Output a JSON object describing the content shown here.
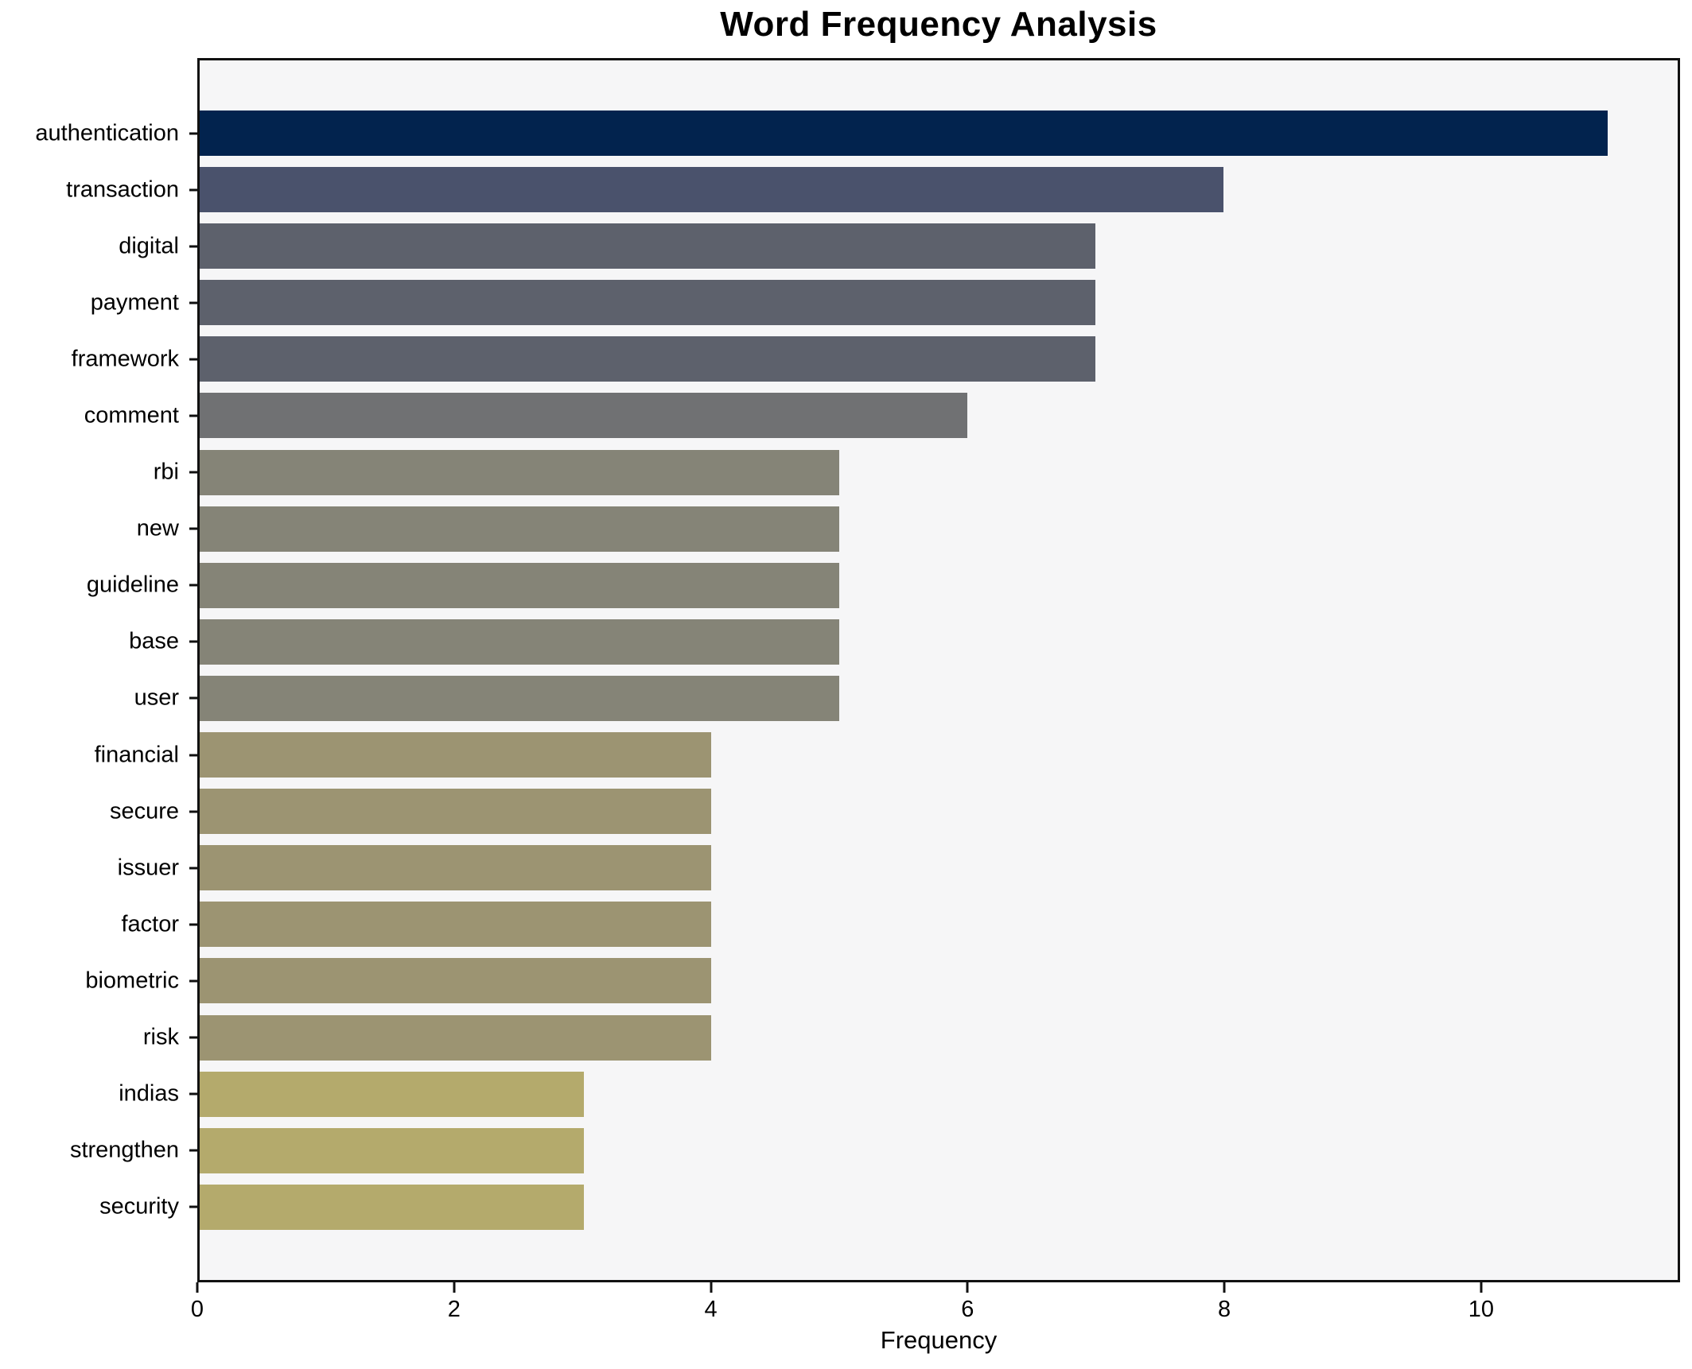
{
  "figure": {
    "background": "#ffffff",
    "plot_background": "#f6f6f7",
    "spine_color": "#111111",
    "text_color": "#000000"
  },
  "chart_data": {
    "type": "bar",
    "orientation": "horizontal",
    "title": "Word Frequency Analysis",
    "xlabel": "Frequency",
    "ylabel": "",
    "categories": [
      "authentication",
      "transaction",
      "digital",
      "payment",
      "framework",
      "comment",
      "rbi",
      "new",
      "guideline",
      "base",
      "user",
      "financial",
      "secure",
      "issuer",
      "factor",
      "biometric",
      "risk",
      "indias",
      "strengthen",
      "security"
    ],
    "values": [
      11,
      8,
      7,
      7,
      7,
      6,
      5,
      5,
      5,
      5,
      5,
      4,
      4,
      4,
      4,
      4,
      4,
      3,
      3,
      3
    ],
    "bar_colors": [
      "#02234e",
      "#4a526c",
      "#5d616c",
      "#5d616c",
      "#5d616c",
      "#707173",
      "#858477",
      "#858477",
      "#858477",
      "#858477",
      "#858477",
      "#9c9472",
      "#9c9472",
      "#9c9472",
      "#9c9472",
      "#9c9472",
      "#9c9472",
      "#b4aa6c",
      "#b4aa6c",
      "#b4aa6c"
    ],
    "x_ticks": [
      0,
      2,
      4,
      6,
      8,
      10
    ],
    "xlim": [
      0,
      11.55
    ],
    "grid": false,
    "legend": "none"
  }
}
